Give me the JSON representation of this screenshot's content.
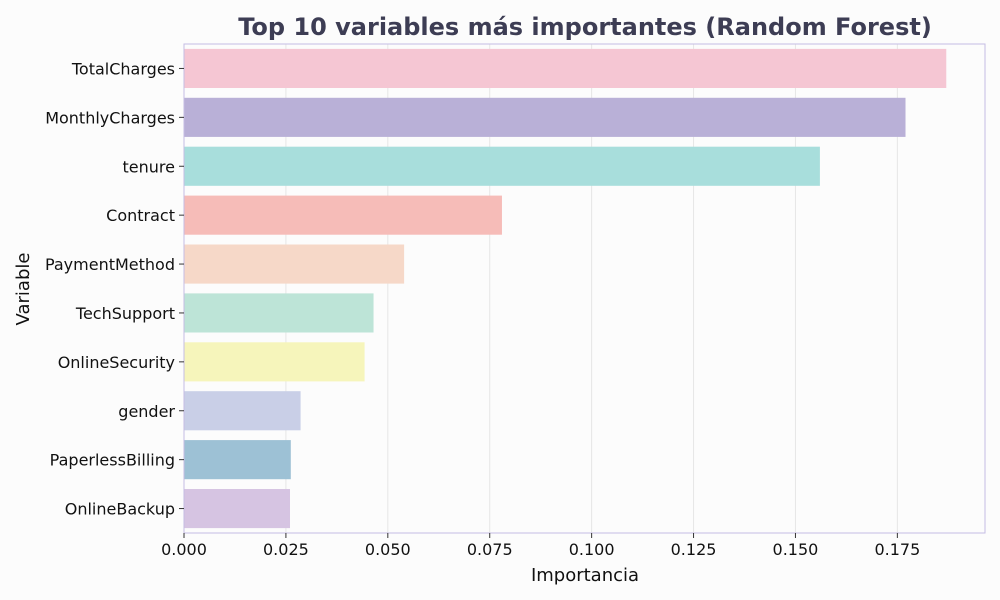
{
  "chart_data": {
    "type": "bar",
    "orientation": "horizontal",
    "title": "Top 10 variables más importantes (Random Forest)",
    "xlabel": "Importancia",
    "ylabel": "Variable",
    "xlim": [
      0,
      0.1965
    ],
    "xticks": [
      "0.000",
      "0.025",
      "0.050",
      "0.075",
      "0.100",
      "0.125",
      "0.150",
      "0.175"
    ],
    "grid": true,
    "categories": [
      "TotalCharges",
      "MonthlyCharges",
      "tenure",
      "Contract",
      "PaymentMethod",
      "TechSupport",
      "OnlineSecurity",
      "gender",
      "PaperlessBilling",
      "OnlineBackup"
    ],
    "values": [
      0.187,
      0.177,
      0.156,
      0.078,
      0.054,
      0.0465,
      0.0443,
      0.0286,
      0.0262,
      0.026
    ],
    "colors": [
      "#f5c6d3",
      "#b9b0d7",
      "#a8dedc",
      "#f6bcb8",
      "#f6d8c8",
      "#bde4d7",
      "#f6f5bb",
      "#c9cfe7",
      "#9dc1d5",
      "#d6c4e2"
    ],
    "frame_color": "#c5bde3",
    "grid_color": "#e6e6e6"
  }
}
